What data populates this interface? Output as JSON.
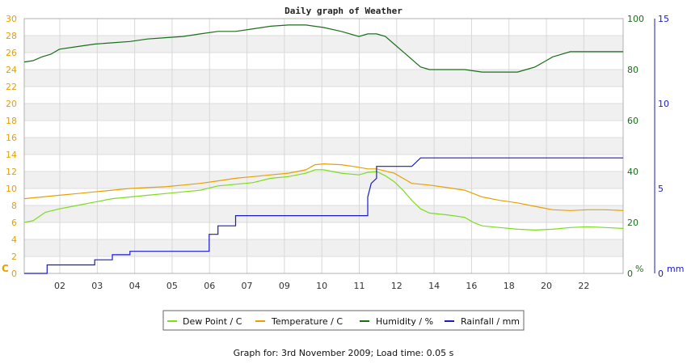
{
  "chart_data": {
    "type": "line",
    "title": "Daily graph of Weather",
    "x_tick_labels": [
      "02",
      "03",
      "04",
      "05",
      "06",
      "07",
      "09",
      "10",
      "11",
      "12",
      "14",
      "16",
      "18",
      "20",
      "22"
    ],
    "left_axis": {
      "unit_label": "C",
      "ylim": [
        0,
        30
      ],
      "ticks": [
        0,
        2,
        4,
        6,
        8,
        10,
        12,
        14,
        16,
        18,
        20,
        22,
        24,
        26,
        28,
        30
      ],
      "color": "#e8a000"
    },
    "right_axis_1": {
      "unit_label": "%",
      "ylim": [
        0,
        100
      ],
      "ticks": [
        0,
        20,
        40,
        60,
        80,
        100
      ],
      "color": "#1a6e1a"
    },
    "right_axis_2": {
      "unit_label": "mm",
      "ylim": [
        0,
        15
      ],
      "ticks": [
        0,
        5,
        10,
        15
      ],
      "color": "#1a1ac8"
    },
    "grid": true,
    "legend_position": "bottom",
    "series": [
      {
        "name": "Dew Point / C",
        "axis": "left",
        "color": "#7cdc1e",
        "points": [
          [
            0,
            6.0
          ],
          [
            0.5,
            6.2
          ],
          [
            1.2,
            7.2
          ],
          [
            2,
            7.6
          ],
          [
            3,
            8.0
          ],
          [
            4,
            8.4
          ],
          [
            5,
            8.8
          ],
          [
            6,
            9.0
          ],
          [
            7,
            9.2
          ],
          [
            8,
            9.4
          ],
          [
            9,
            9.6
          ],
          [
            10,
            9.8
          ],
          [
            11,
            10.3
          ],
          [
            12,
            10.5
          ],
          [
            13,
            10.7
          ],
          [
            14,
            11.2
          ],
          [
            15,
            11.4
          ],
          [
            16,
            11.8
          ],
          [
            16.5,
            12.2
          ],
          [
            17,
            12.2
          ],
          [
            18,
            11.8
          ],
          [
            19,
            11.6
          ],
          [
            19.5,
            11.9
          ],
          [
            20,
            12.0
          ],
          [
            20.5,
            11.5
          ],
          [
            21,
            10.8
          ],
          [
            21.5,
            9.8
          ],
          [
            22,
            8.6
          ],
          [
            22.5,
            7.6
          ],
          [
            23,
            7.1
          ],
          [
            24,
            6.9
          ],
          [
            25,
            6.6
          ],
          [
            25.5,
            6.0
          ],
          [
            26,
            5.6
          ],
          [
            27,
            5.4
          ],
          [
            28,
            5.2
          ],
          [
            29,
            5.1
          ],
          [
            30,
            5.2
          ],
          [
            31,
            5.4
          ],
          [
            32,
            5.5
          ],
          [
            33,
            5.4
          ],
          [
            34,
            5.3
          ]
        ]
      },
      {
        "name": "Temperature / C",
        "axis": "left",
        "color": "#e8a000",
        "points": [
          [
            0,
            8.8
          ],
          [
            1,
            9.0
          ],
          [
            2,
            9.2
          ],
          [
            3,
            9.4
          ],
          [
            4,
            9.6
          ],
          [
            5,
            9.8
          ],
          [
            6,
            10.0
          ],
          [
            7,
            10.1
          ],
          [
            8,
            10.2
          ],
          [
            9,
            10.4
          ],
          [
            10,
            10.6
          ],
          [
            11,
            10.9
          ],
          [
            12,
            11.2
          ],
          [
            13,
            11.4
          ],
          [
            14,
            11.6
          ],
          [
            15,
            11.8
          ],
          [
            16,
            12.2
          ],
          [
            16.5,
            12.8
          ],
          [
            17,
            12.9
          ],
          [
            18,
            12.8
          ],
          [
            19,
            12.5
          ],
          [
            19.5,
            12.3
          ],
          [
            20,
            12.3
          ],
          [
            21,
            11.8
          ],
          [
            21.5,
            11.2
          ],
          [
            22,
            10.6
          ],
          [
            23,
            10.4
          ],
          [
            24,
            10.1
          ],
          [
            25,
            9.8
          ],
          [
            25.5,
            9.4
          ],
          [
            26,
            9.0
          ],
          [
            27,
            8.6
          ],
          [
            28,
            8.3
          ],
          [
            29,
            7.9
          ],
          [
            30,
            7.5
          ],
          [
            31,
            7.4
          ],
          [
            32,
            7.5
          ],
          [
            33,
            7.5
          ],
          [
            34,
            7.4
          ]
        ]
      },
      {
        "name": "Humidity / %",
        "axis": "right_1",
        "color": "#1a6e1a",
        "points": [
          [
            0,
            83
          ],
          [
            0.5,
            83.5
          ],
          [
            1,
            85
          ],
          [
            1.5,
            86
          ],
          [
            2,
            88
          ],
          [
            3,
            89
          ],
          [
            4,
            90
          ],
          [
            5,
            90.5
          ],
          [
            6,
            91
          ],
          [
            7,
            92
          ],
          [
            8,
            92.5
          ],
          [
            9,
            93
          ],
          [
            10,
            94
          ],
          [
            11,
            95
          ],
          [
            12,
            95
          ],
          [
            13,
            96
          ],
          [
            14,
            97
          ],
          [
            15,
            97.5
          ],
          [
            16,
            97.5
          ],
          [
            17,
            96.5
          ],
          [
            18,
            95
          ],
          [
            19,
            93
          ],
          [
            19.5,
            94
          ],
          [
            20,
            94
          ],
          [
            20.5,
            93
          ],
          [
            21,
            90
          ],
          [
            21.5,
            87
          ],
          [
            22,
            84
          ],
          [
            22.5,
            81
          ],
          [
            23,
            80
          ],
          [
            24,
            80
          ],
          [
            25,
            80
          ],
          [
            26,
            79
          ],
          [
            27,
            79
          ],
          [
            28,
            79
          ],
          [
            28.5,
            80
          ],
          [
            29,
            81
          ],
          [
            29.5,
            83
          ],
          [
            30,
            85
          ],
          [
            31,
            87
          ],
          [
            32,
            87
          ],
          [
            33,
            87
          ],
          [
            34,
            87
          ]
        ]
      },
      {
        "name": "Rainfall / mm",
        "axis": "right_2",
        "color": "#1a1ac8",
        "points": [
          [
            0,
            0
          ],
          [
            1.3,
            0
          ],
          [
            1.3,
            0.5
          ],
          [
            4,
            0.5
          ],
          [
            4,
            0.8
          ],
          [
            5,
            0.8
          ],
          [
            5,
            1.1
          ],
          [
            6,
            1.1
          ],
          [
            6,
            1.3
          ],
          [
            10.5,
            1.3
          ],
          [
            10.5,
            2.3
          ],
          [
            11,
            2.3
          ],
          [
            11,
            2.8
          ],
          [
            12,
            2.8
          ],
          [
            12,
            3.4
          ],
          [
            19.5,
            3.4
          ],
          [
            19.5,
            4.5
          ],
          [
            19.7,
            5.3
          ],
          [
            20,
            5.6
          ],
          [
            20,
            6.3
          ],
          [
            22,
            6.3
          ],
          [
            22.5,
            6.8
          ],
          [
            34,
            6.8
          ]
        ]
      }
    ]
  },
  "footer": {
    "text": "Graph for: 3rd November 2009; Load time: 0.05 s"
  }
}
